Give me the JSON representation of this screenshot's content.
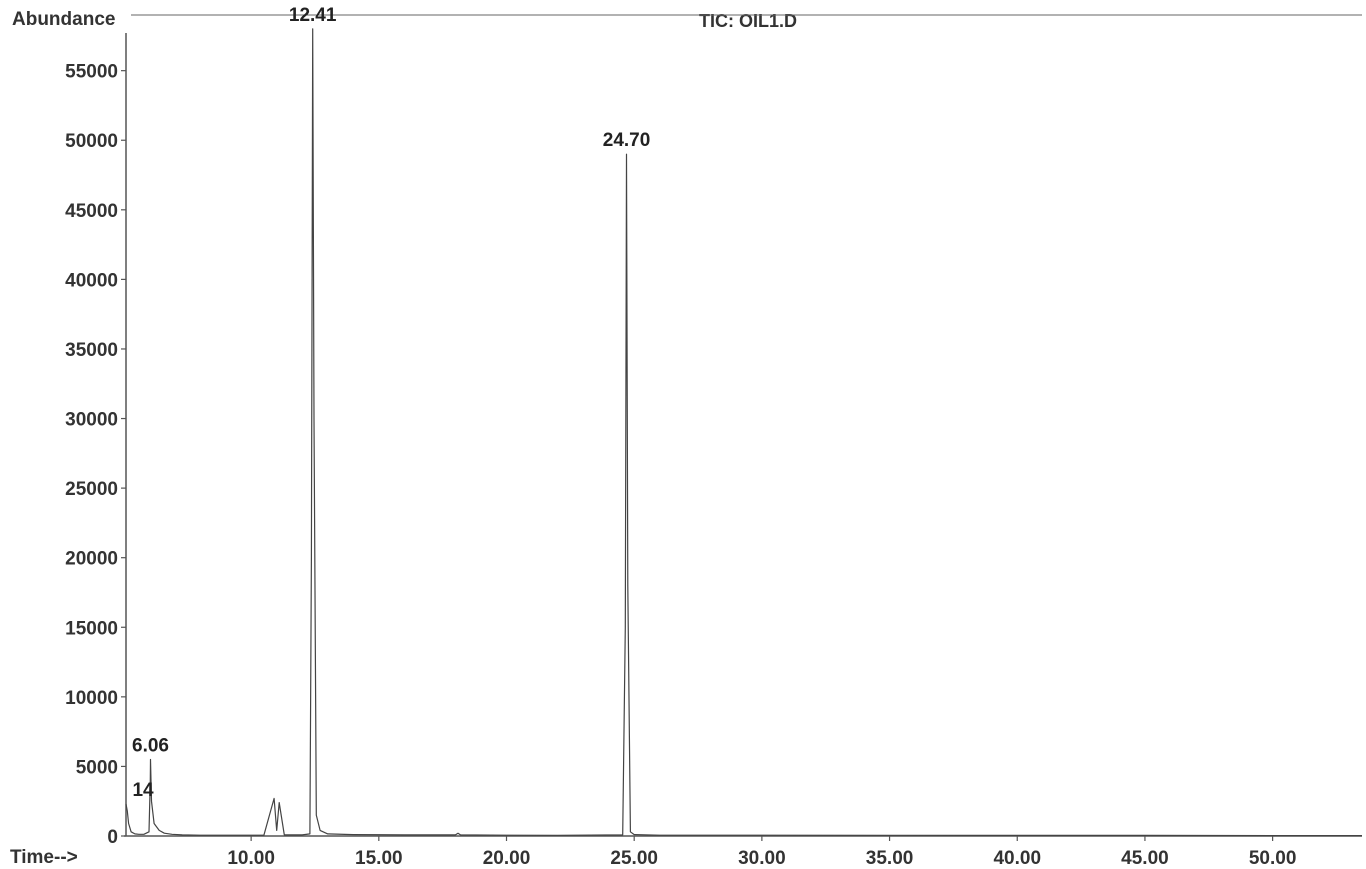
{
  "chart_data": {
    "type": "line",
    "title": "TIC: OIL1.D",
    "ylabel": "Abundance",
    "xlabel": "Time-->",
    "xlim": [
      5.1,
      53.5
    ],
    "ylim": [
      0,
      59000
    ],
    "x_ticks": [
      10,
      15,
      20,
      25,
      30,
      35,
      40,
      45,
      50
    ],
    "x_tick_labels": [
      "10.00",
      "15.00",
      "20.00",
      "25.00",
      "30.00",
      "35.00",
      "40.00",
      "45.00",
      "50.00"
    ],
    "y_ticks": [
      0,
      5000,
      10000,
      15000,
      20000,
      25000,
      30000,
      35000,
      40000,
      45000,
      50000,
      55000
    ],
    "y_tick_labels": [
      "0",
      "5000",
      "10000",
      "15000",
      "20000",
      "25000",
      "30000",
      "35000",
      "40000",
      "45000",
      "50000",
      "55000"
    ],
    "grid": false,
    "line_color": "#444444",
    "series": [
      {
        "x": [
          5.1,
          5.15,
          5.2,
          5.3,
          5.45,
          5.6,
          5.8,
          6.0,
          6.05,
          6.06,
          6.1,
          6.2,
          6.4,
          6.6,
          6.9,
          7.3,
          8.0,
          9.0,
          10.5,
          10.9,
          11.0,
          11.1,
          11.3,
          12.0,
          12.3,
          12.36,
          12.41,
          12.46,
          12.55,
          12.7,
          13.0,
          14.0,
          16.0,
          18.0,
          18.1,
          18.2,
          20.0,
          22.0,
          24.55,
          24.65,
          24.7,
          24.75,
          24.85,
          25.0,
          26.0,
          30.0,
          35.0,
          40.0,
          45.0,
          50.0,
          53.5
        ],
        "y": [
          2300,
          1800,
          900,
          300,
          150,
          120,
          120,
          300,
          4000,
          5500,
          2500,
          900,
          400,
          200,
          120,
          80,
          60,
          60,
          60,
          2700,
          400,
          2400,
          80,
          80,
          150,
          20000,
          58000,
          30000,
          1500,
          400,
          150,
          100,
          80,
          80,
          200,
          80,
          60,
          50,
          80,
          15000,
          49000,
          18000,
          300,
          100,
          60,
          60,
          50,
          40,
          40,
          30,
          30
        ]
      }
    ],
    "peak_labels": [
      {
        "text": "14",
        "x": 5.14,
        "y": 2300
      },
      {
        "text": "6.06",
        "x": 6.06,
        "y": 5500
      },
      {
        "text": "12.41",
        "x": 12.41,
        "y": 58000
      },
      {
        "text": "24.70",
        "x": 24.7,
        "y": 49000
      }
    ]
  }
}
